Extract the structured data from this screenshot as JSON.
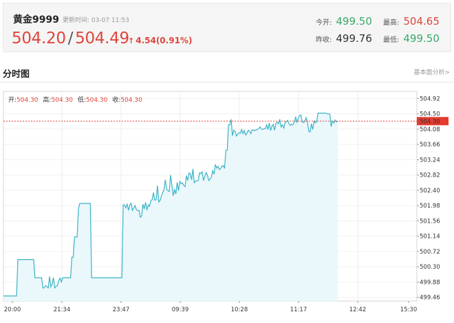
{
  "quote": {
    "symbol": "黄金9999",
    "update_label": "更新时间:",
    "update_time": "03-07 11:53",
    "price_last": "504.20",
    "price_sep": "/",
    "price_ask": "504.49",
    "change": "4.54(0.91%)",
    "open_label": "今开:",
    "open_value": "499.50",
    "high_label": "最高:",
    "high_value": "504.65",
    "prev_close_label": "昨收:",
    "prev_close_value": "499.76",
    "low_label": "最低:",
    "low_value": "499.50",
    "colors": {
      "up": "#e0453b",
      "down": "#3aa96a"
    }
  },
  "section": {
    "title": "分时图",
    "link": "基本面分析>"
  },
  "legend": {
    "open_label": "开:",
    "open_value": "504.30",
    "high_label": "高:",
    "high_value": "504.30",
    "low_label": "低:",
    "low_value": "504.30",
    "close_label": "收:",
    "close_value": "504.30"
  },
  "chart_data": {
    "type": "area",
    "x_tick_labels": [
      "20:00",
      "21:34",
      "23:47",
      "09:39",
      "10:28",
      "11:17",
      "12:42",
      "15:30"
    ],
    "y_ticks": [
      "504.92",
      "504.50",
      "504.08",
      "503.66",
      "503.24",
      "502.82",
      "502.40",
      "501.98",
      "501.56",
      "501.14",
      "500.72",
      "500.30",
      "499.88",
      "499.46"
    ],
    "ylim": [
      499.36,
      505.06
    ],
    "current_price_label": "504.30",
    "current_price": 504.3,
    "line_color": "#3ab3c6",
    "fill_color": "#eaf7fb",
    "current_price_color": "#e53a2f",
    "series": [
      {
        "values": [
          499.5,
          499.5,
          499.5,
          499.5,
          499.5,
          499.5,
          499.5,
          499.5,
          499.5,
          499.5,
          499.5,
          500.5,
          500.5,
          500.5,
          500.5,
          500.5,
          500.5,
          500.5,
          500.5,
          500.5,
          500.5,
          500.5,
          500.5,
          500.5,
          500.0,
          500.0,
          500.0,
          500.0,
          500.0,
          500.0,
          499.72,
          499.72,
          499.78,
          499.76,
          499.72,
          500.03,
          499.75,
          499.83,
          500.0,
          499.72,
          499.77,
          499.78,
          499.92,
          499.99,
          499.88,
          500.0,
          500.0,
          500.0,
          500.0,
          500.0,
          500.0,
          500.0,
          500.56,
          500.56,
          501.12,
          501.12,
          501.12,
          501.9,
          502.04,
          502.04,
          502.04,
          502.04,
          502.04,
          502.04,
          502.04,
          502.04,
          502.04,
          500.0,
          500.0,
          500.0,
          500.0,
          500.0,
          500.0,
          500.0,
          500.0,
          500.0,
          500.0,
          500.0,
          500.0,
          500.0,
          500.0,
          500.0,
          500.0,
          500.0,
          500.0,
          500.0,
          500.0,
          500.0,
          500.0,
          500.0,
          500.0,
          502.0,
          502.0,
          501.92,
          502.02,
          501.85,
          502.0,
          502.05,
          501.85,
          501.91,
          501.98,
          501.87,
          501.84,
          501.85,
          501.66,
          501.7,
          502.02,
          501.89,
          502.07,
          501.86,
          502.0,
          501.96,
          502.12,
          502.14,
          502.34,
          502.13,
          502.14,
          502.53,
          502.08,
          502.12,
          502.24,
          502.33,
          502.42,
          502.69,
          502.43,
          502.39,
          502.37,
          502.82,
          502.54,
          502.25,
          502.42,
          502.3,
          502.62,
          502.39,
          502.64,
          502.58,
          502.61,
          502.53,
          502.5,
          502.8,
          502.67,
          502.88,
          502.85,
          502.69,
          502.99,
          502.61,
          502.66,
          502.66,
          502.67,
          502.88,
          502.86,
          502.91,
          502.67,
          502.78,
          502.89,
          502.81,
          502.67,
          502.71,
          502.76,
          502.94,
          502.84,
          503.11,
          503.01,
          503.06,
          502.97,
          503.0,
          503.06,
          503.08,
          503.0,
          503.5,
          503.5,
          504.2,
          504.2,
          504.35,
          503.9,
          504.05,
          504.02,
          503.89,
          503.94,
          503.98,
          503.97,
          504.07,
          503.96,
          504.04,
          503.92,
          503.97,
          504.05,
          504.02,
          503.96,
          504.06,
          504.05,
          504.04,
          504.06,
          504.07,
          504.1,
          504.14,
          504.08,
          504.07,
          504.1,
          504.09,
          504.2,
          504.07,
          504.25,
          504.04,
          504.16,
          504.21,
          504.05,
          504.24,
          504.27,
          504.23,
          504.35,
          504.14,
          504.2,
          504.11,
          504.27,
          504.29,
          504.32,
          504.23,
          504.18,
          504.22,
          504.2,
          504.28,
          504.42,
          504.27,
          504.38,
          504.45,
          504.47,
          504.28,
          504.26,
          504.3,
          504.4,
          504.28,
          504.02,
          504.0,
          504.23,
          504.07,
          504.3,
          504.25,
          504.3,
          504.52,
          504.52,
          504.52,
          504.52,
          504.52,
          504.52,
          504.52,
          504.5,
          504.5,
          504.5,
          504.15,
          504.3,
          504.25,
          504.33,
          504.28,
          504.3
        ]
      }
    ]
  }
}
